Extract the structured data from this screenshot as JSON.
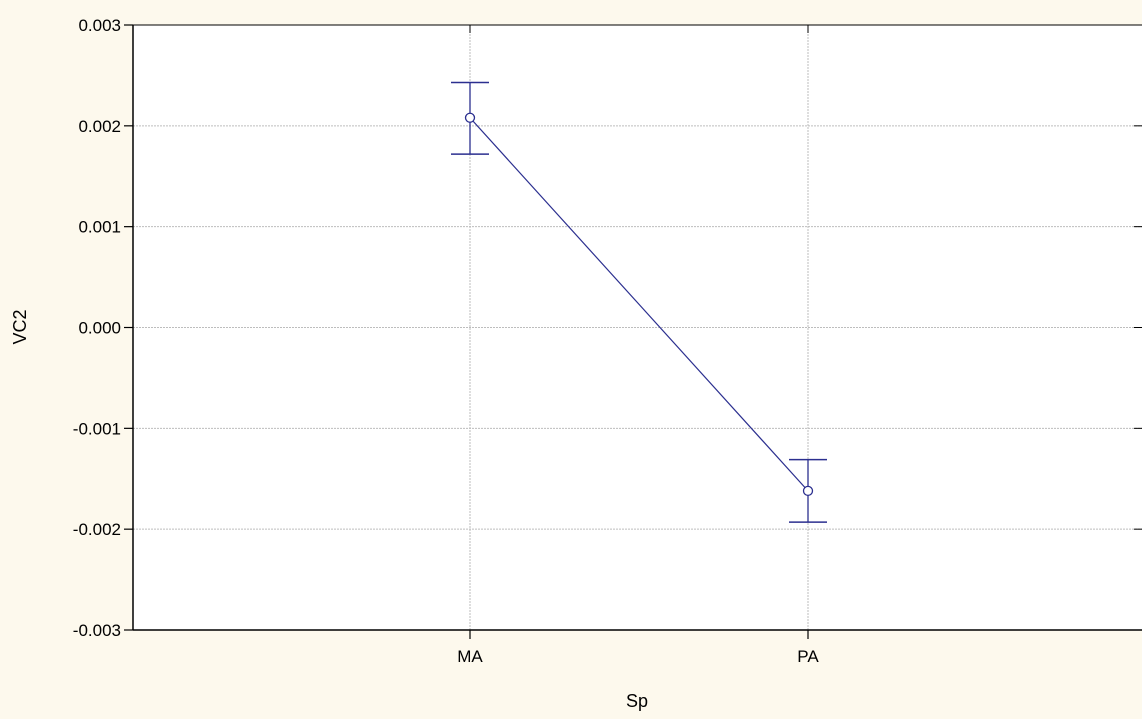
{
  "colors": {
    "background": "#fdf9ed",
    "plot_background": "#ffffff",
    "series": "#2b2f8f",
    "grid": "#bdbdbd",
    "axis": "#000000"
  },
  "chart_data": {
    "type": "line",
    "title": "",
    "xlabel": "Sp",
    "ylabel": "VC2",
    "categories": [
      "MA",
      "PA"
    ],
    "series": [
      {
        "values": [
          0.00208,
          -0.00162
        ],
        "error_upper": [
          0.00243,
          -0.00131
        ],
        "error_lower": [
          0.00172,
          -0.00193
        ],
        "marker": "open-circle",
        "error_bars": true
      }
    ],
    "ylim": [
      -0.003,
      0.003
    ],
    "yticks": [
      0.003,
      0.002,
      0.001,
      0.0,
      -0.001,
      -0.002,
      -0.003
    ],
    "ytick_labels": [
      "0.003",
      "0.002",
      "0.001",
      "0.000",
      "-0.001",
      "-0.002",
      "-0.003"
    ],
    "grid": true,
    "legend": "none"
  }
}
